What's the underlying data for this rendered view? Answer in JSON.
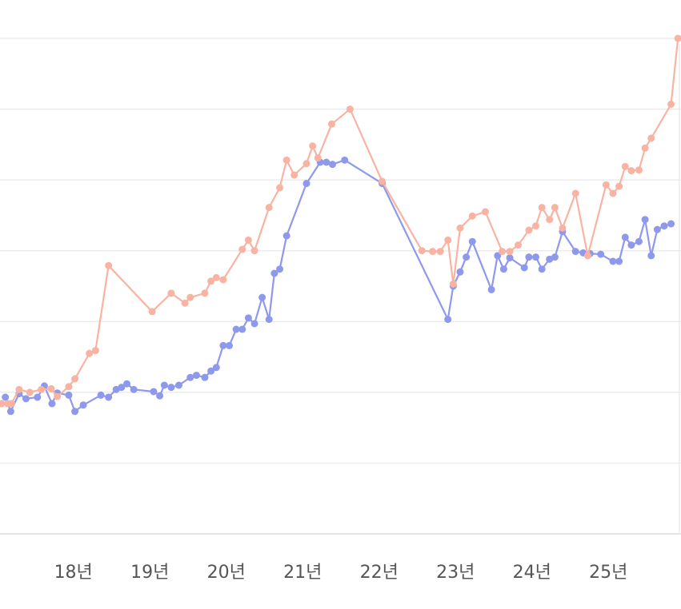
{
  "chart_data": {
    "type": "line",
    "xlim": [
      2017.04,
      2025.95
    ],
    "xticks": [
      {
        "value": 2018,
        "label": "18년"
      },
      {
        "value": 2019,
        "label": "19년"
      },
      {
        "value": 2020,
        "label": "20년"
      },
      {
        "value": 2021,
        "label": "21년"
      },
      {
        "value": 2022,
        "label": "22년"
      },
      {
        "value": 2023,
        "label": "23년"
      },
      {
        "value": 2024,
        "label": "24년"
      },
      {
        "value": 2025,
        "label": "25년"
      }
    ],
    "ylim": [
      0,
      7
    ],
    "yticks": [
      0,
      1,
      2,
      3,
      4,
      5,
      6,
      7
    ],
    "grid": true,
    "series": [
      {
        "color": "#8e99ec",
        "x": [
          2017.11,
          2017.18,
          2017.29,
          2017.38,
          2017.53,
          2017.62,
          2017.72,
          2017.79,
          2017.94,
          2018.02,
          2018.13,
          2018.36,
          2018.46,
          2018.56,
          2018.63,
          2018.7,
          2018.79,
          2019.05,
          2019.13,
          2019.19,
          2019.28,
          2019.38,
          2019.53,
          2019.61,
          2019.72,
          2019.8,
          2019.87,
          2019.96,
          2020.04,
          2020.13,
          2020.21,
          2020.29,
          2020.37,
          2020.47,
          2020.56,
          2020.63,
          2020.7,
          2020.79,
          2021.05,
          2021.23,
          2021.31,
          2021.39,
          2021.55,
          2022.04,
          2022.9,
          2022.97,
          2023.06,
          2023.14,
          2023.22,
          2023.47,
          2023.55,
          2023.63,
          2023.71,
          2023.9,
          2023.96,
          2024.05,
          2024.13,
          2024.23,
          2024.3,
          2024.4,
          2024.57,
          2024.67,
          2024.76,
          2024.9,
          2025.06,
          2025.14,
          2025.22,
          2025.3,
          2025.4,
          2025.48,
          2025.56,
          2025.64,
          2025.73,
          2025.82
        ],
        "values": [
          1.93,
          1.73,
          1.98,
          1.91,
          1.93,
          2.09,
          1.84,
          1.99,
          1.96,
          1.73,
          1.82,
          1.96,
          1.93,
          2.04,
          2.07,
          2.12,
          2.04,
          2.01,
          1.95,
          2.1,
          2.07,
          2.1,
          2.21,
          2.24,
          2.21,
          2.3,
          2.35,
          2.66,
          2.66,
          2.89,
          2.89,
          3.05,
          2.97,
          3.34,
          3.03,
          3.68,
          3.74,
          4.21,
          4.95,
          5.25,
          5.25,
          5.22,
          5.28,
          4.95,
          3.03,
          3.5,
          3.7,
          3.91,
          4.13,
          3.45,
          3.93,
          3.74,
          3.9,
          3.76,
          3.91,
          3.91,
          3.74,
          3.88,
          3.91,
          4.27,
          3.99,
          3.97,
          3.96,
          3.95,
          3.85,
          3.85,
          4.19,
          4.08,
          4.13,
          4.44,
          3.93,
          4.3,
          4.35,
          4.38
        ]
      },
      {
        "color": "#f9b3a3",
        "x": [
          2017.06,
          2017.14,
          2017.19,
          2017.29,
          2017.43,
          2017.58,
          2017.71,
          2017.79,
          2017.94,
          2018.02,
          2018.21,
          2018.29,
          2018.46,
          2019.03,
          2019.28,
          2019.46,
          2019.53,
          2019.72,
          2019.8,
          2019.87,
          2019.96,
          2020.21,
          2020.29,
          2020.37,
          2020.56,
          2020.7,
          2020.79,
          2020.89,
          2021.05,
          2021.13,
          2021.2,
          2021.38,
          2021.62,
          2022.04,
          2022.56,
          2022.7,
          2022.8,
          2022.9,
          2022.97,
          2023.06,
          2023.22,
          2023.39,
          2023.61,
          2023.71,
          2023.82,
          2023.96,
          2024.05,
          2024.13,
          2024.23,
          2024.3,
          2024.4,
          2024.57,
          2024.73,
          2024.97,
          2025.06,
          2025.14,
          2025.22,
          2025.3,
          2025.4,
          2025.48,
          2025.56,
          2025.82,
          2025.91
        ],
        "values": [
          1.84,
          1.84,
          1.84,
          2.04,
          2.0,
          2.04,
          2.05,
          1.94,
          2.08,
          2.19,
          2.55,
          2.59,
          3.79,
          3.14,
          3.4,
          3.26,
          3.34,
          3.4,
          3.57,
          3.62,
          3.59,
          4.02,
          4.15,
          4.0,
          4.61,
          4.89,
          5.28,
          5.07,
          5.23,
          5.48,
          5.31,
          5.79,
          6.0,
          4.98,
          4.0,
          3.99,
          3.99,
          4.15,
          3.53,
          4.32,
          4.49,
          4.55,
          3.99,
          3.99,
          4.08,
          4.29,
          4.35,
          4.61,
          4.44,
          4.61,
          4.32,
          4.81,
          3.93,
          4.93,
          4.81,
          4.91,
          5.19,
          5.13,
          5.14,
          5.45,
          5.59,
          6.07,
          7.0
        ]
      }
    ]
  }
}
